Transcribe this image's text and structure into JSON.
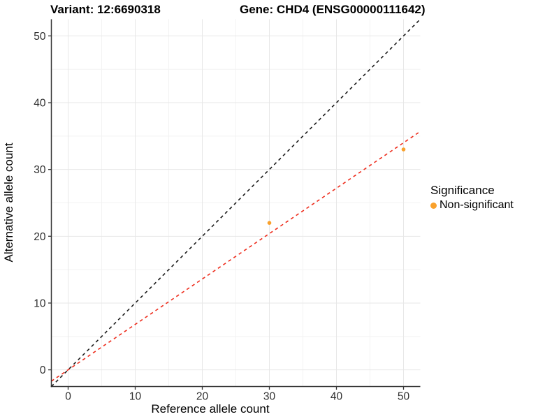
{
  "titles": {
    "variant": "Variant: 12:6690318",
    "gene": "Gene: CHD4 (ENSG00000111642)"
  },
  "chart_data": {
    "type": "scatter",
    "xlabel": "Reference allele count",
    "ylabel": "Alternative allele count",
    "xlim": [
      -2.5,
      52.5
    ],
    "ylim": [
      -2.5,
      52.5
    ],
    "xticks": [
      0,
      10,
      20,
      30,
      40,
      50
    ],
    "yticks": [
      0,
      10,
      20,
      30,
      40,
      50
    ],
    "minor_ticks": [
      5,
      15,
      25,
      35,
      45
    ],
    "grid": "major and minor gridlines, white panel background",
    "points": [
      {
        "x": 30,
        "y": 22,
        "series": "Non-significant"
      },
      {
        "x": 50,
        "y": 33,
        "series": "Non-significant"
      }
    ],
    "lines": [
      {
        "name": "identity-line",
        "slope": 1.0,
        "intercept": 0,
        "color": "#1a1a1a",
        "style": "dashed"
      },
      {
        "name": "fit-line",
        "slope": 0.68,
        "intercept": 0,
        "color": "#ee2c1c",
        "style": "dashed"
      }
    ],
    "legend": {
      "title": "Significance",
      "position": "right",
      "items": [
        {
          "label": "Non-significant",
          "color": "#f9a12c"
        }
      ]
    }
  },
  "colors": {
    "point": "#f9a12c",
    "grid_major": "#e7e7e7",
    "grid_minor": "#f3f3f3",
    "axis_line": "#333333",
    "tick_text": "#2e2e2e",
    "background": "#ffffff"
  }
}
